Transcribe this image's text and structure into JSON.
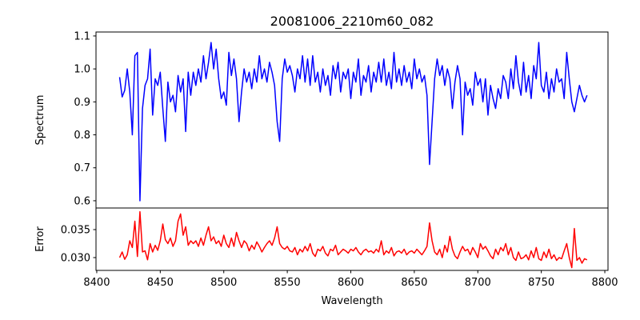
{
  "chart_data": [
    {
      "type": "line",
      "title": "20081006_2210m60_082",
      "xlabel": "",
      "ylabel": "Spectrum",
      "xlim": [
        8399.4,
        8802.5
      ],
      "ylim": [
        0.578,
        1.112
      ],
      "xticks": [
        8400,
        8450,
        8500,
        8550,
        8600,
        8650,
        8700,
        8750,
        8800
      ],
      "yticks": [
        0.6,
        0.7,
        0.8,
        0.9,
        1.0,
        1.1
      ],
      "ytick_labels": [
        "0.6",
        "0.7",
        "0.8",
        "0.9",
        "1.0",
        "1.1"
      ],
      "grid": false,
      "series": [
        {
          "name": "spectrum",
          "color": "#0000ff",
          "x_start": 8418,
          "x_step": 2,
          "values": [
            0.975,
            0.915,
            0.935,
            1.0,
            0.93,
            0.8,
            1.04,
            1.05,
            0.6,
            0.88,
            0.95,
            0.97,
            1.06,
            0.86,
            0.97,
            0.95,
            0.99,
            0.88,
            0.78,
            0.96,
            0.9,
            0.92,
            0.87,
            0.98,
            0.93,
            0.97,
            0.81,
            0.99,
            0.92,
            0.99,
            0.95,
            1.0,
            0.96,
            1.04,
            0.97,
            1.02,
            1.08,
            1.0,
            1.06,
            0.97,
            0.91,
            0.93,
            0.89,
            1.05,
            0.98,
            1.03,
            0.97,
            0.84,
            0.93,
            1.0,
            0.96,
            0.99,
            0.94,
            1.0,
            0.96,
            1.04,
            0.97,
            1.0,
            0.96,
            1.02,
            0.99,
            0.95,
            0.84,
            0.78,
            0.97,
            1.03,
            0.99,
            1.01,
            0.98,
            0.93,
            1.0,
            0.97,
            1.04,
            0.96,
            1.03,
            0.95,
            1.04,
            0.96,
            0.99,
            0.93,
            1.0,
            0.95,
            0.98,
            0.92,
            1.01,
            0.97,
            1.02,
            0.93,
            0.99,
            0.97,
            1.0,
            0.91,
            0.99,
            0.96,
            1.03,
            0.92,
            0.98,
            0.96,
            1.01,
            0.93,
            0.99,
            0.96,
            1.02,
            0.96,
            1.03,
            0.95,
            0.99,
            0.94,
            1.05,
            0.96,
            1.0,
            0.95,
            1.01,
            0.96,
            0.99,
            0.94,
            1.03,
            0.97,
            1.0,
            0.96,
            0.98,
            0.92,
            0.71,
            0.84,
            0.97,
            1.03,
            0.98,
            1.01,
            0.95,
            1.0,
            0.97,
            0.88,
            0.96,
            1.01,
            0.97,
            0.8,
            0.96,
            0.92,
            0.94,
            0.89,
            0.99,
            0.95,
            0.97,
            0.9,
            0.97,
            0.86,
            0.95,
            0.91,
            0.88,
            0.94,
            0.91,
            0.98,
            0.96,
            0.91,
            1.0,
            0.94,
            1.04,
            0.96,
            0.92,
            1.02,
            0.93,
            0.98,
            0.91,
            1.01,
            0.97,
            1.08,
            0.95,
            0.93,
            0.99,
            0.91,
            0.97,
            0.93,
            1.0,
            0.96,
            0.97,
            0.91,
            1.05,
            0.97,
            0.9,
            0.87,
            0.91,
            0.95,
            0.92,
            0.9,
            0.92
          ]
        }
      ]
    },
    {
      "type": "line",
      "title": "",
      "xlabel": "Wavelength",
      "ylabel": "Error",
      "xlim": [
        8399.4,
        8802.5
      ],
      "ylim": [
        0.02771,
        0.03886
      ],
      "xticks": [
        8400,
        8450,
        8500,
        8550,
        8600,
        8650,
        8700,
        8750,
        8800
      ],
      "xtick_labels": [
        "8400",
        "8450",
        "8500",
        "8550",
        "8600",
        "8650",
        "8700",
        "8750",
        "8800"
      ],
      "yticks": [
        0.03,
        0.035
      ],
      "ytick_labels": [
        "0.030",
        "0.035"
      ],
      "grid": false,
      "series": [
        {
          "name": "error",
          "color": "#ff0000",
          "x_start": 8418,
          "x_step": 2,
          "values": [
            0.03,
            0.031,
            0.0297,
            0.0305,
            0.033,
            0.0318,
            0.0365,
            0.0302,
            0.0382,
            0.031,
            0.0312,
            0.0296,
            0.0325,
            0.031,
            0.0322,
            0.0313,
            0.033,
            0.036,
            0.0332,
            0.0325,
            0.0335,
            0.032,
            0.033,
            0.0365,
            0.0378,
            0.034,
            0.0355,
            0.0322,
            0.033,
            0.0325,
            0.033,
            0.032,
            0.0335,
            0.0322,
            0.034,
            0.0355,
            0.033,
            0.0337,
            0.0325,
            0.033,
            0.032,
            0.034,
            0.0325,
            0.0318,
            0.0335,
            0.032,
            0.0345,
            0.033,
            0.0318,
            0.033,
            0.0325,
            0.0312,
            0.0322,
            0.0315,
            0.0328,
            0.032,
            0.031,
            0.0318,
            0.0325,
            0.033,
            0.0322,
            0.0335,
            0.0355,
            0.0325,
            0.0318,
            0.0315,
            0.032,
            0.0312,
            0.031,
            0.0318,
            0.0305,
            0.0315,
            0.031,
            0.032,
            0.0312,
            0.0325,
            0.0308,
            0.0302,
            0.0315,
            0.0312,
            0.032,
            0.0308,
            0.0303,
            0.0315,
            0.0312,
            0.0322,
            0.0305,
            0.031,
            0.0315,
            0.0312,
            0.0308,
            0.0315,
            0.0312,
            0.0318,
            0.031,
            0.0305,
            0.0312,
            0.0315,
            0.031,
            0.0312,
            0.0308,
            0.0315,
            0.031,
            0.033,
            0.0305,
            0.0312,
            0.0308,
            0.0318,
            0.0303,
            0.031,
            0.0312,
            0.0308,
            0.0315,
            0.0305,
            0.031,
            0.0312,
            0.0308,
            0.0315,
            0.031,
            0.0305,
            0.0312,
            0.032,
            0.0362,
            0.033,
            0.031,
            0.0305,
            0.0315,
            0.03,
            0.0322,
            0.031,
            0.0338,
            0.0315,
            0.0303,
            0.0298,
            0.031,
            0.032,
            0.0312,
            0.0315,
            0.0305,
            0.0318,
            0.031,
            0.03,
            0.0325,
            0.0315,
            0.032,
            0.0312,
            0.0303,
            0.0298,
            0.0315,
            0.0305,
            0.0318,
            0.0312,
            0.0325,
            0.0305,
            0.0318,
            0.03,
            0.0295,
            0.031,
            0.0298,
            0.03,
            0.0305,
            0.0296,
            0.0312,
            0.03,
            0.0318,
            0.0298,
            0.0295,
            0.031,
            0.03,
            0.0315,
            0.0298,
            0.0305,
            0.0295,
            0.03,
            0.0298,
            0.0312,
            0.0325,
            0.03,
            0.0282,
            0.0352,
            0.0295,
            0.03,
            0.029,
            0.0298,
            0.0296
          ]
        }
      ]
    }
  ]
}
